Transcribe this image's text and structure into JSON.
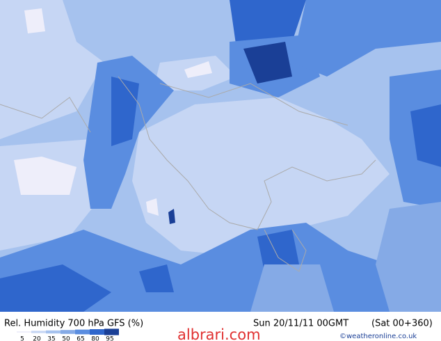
{
  "header": {
    "title": "Rel. Humidity 700 hPa GFS (%)",
    "date": "Sun 20/11/11 00GMT",
    "run": "(Sat 00+360)"
  },
  "legend": {
    "levels": [
      5,
      20,
      35,
      50,
      65,
      80,
      95
    ],
    "colors": [
      "#eeeefa",
      "#c6d6f4",
      "#a6c2ee",
      "#85aae6",
      "#5a8de0",
      "#2f66cc",
      "#1a3f96"
    ]
  },
  "footer": {
    "watermark": "albrari.com",
    "credit": "©weatheronline.co.uk"
  }
}
